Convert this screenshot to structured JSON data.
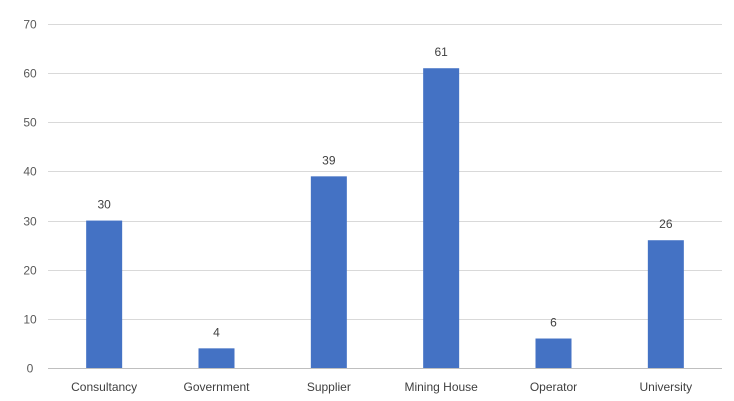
{
  "chart_data": {
    "type": "bar",
    "categories": [
      "Consultancy",
      "Government",
      "Supplier",
      "Mining House",
      "Operator",
      "University"
    ],
    "values": [
      30,
      4,
      39,
      61,
      6,
      26
    ],
    "ylim": [
      0,
      70
    ],
    "yticks": [
      0,
      10,
      20,
      30,
      40,
      50,
      60,
      70
    ],
    "grid": true,
    "legend": "none",
    "bar_color": "#4472C4",
    "data_labels": true
  }
}
